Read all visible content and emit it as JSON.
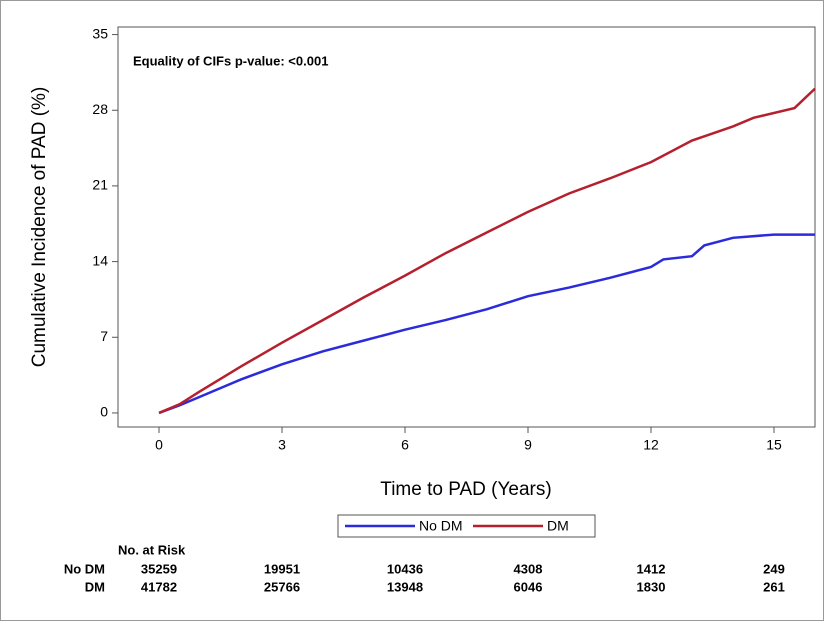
{
  "chart_data": {
    "type": "line",
    "annotation": "Equality of CIFs p-value: <0.001",
    "x_label": "Time to PAD (Years)",
    "y_label": "Cumulative Incidence of PAD (%)",
    "xlim": [
      -1,
      16
    ],
    "xticks": [
      0,
      3,
      6,
      9,
      12,
      15
    ],
    "ylim": [
      -1.3,
      35.7
    ],
    "yticks": [
      0,
      7,
      14,
      21,
      28,
      35
    ],
    "series": [
      {
        "name": "No DM",
        "color": "#2b2bdc",
        "x": [
          0,
          0.5,
          1,
          2,
          3,
          4,
          5,
          6,
          7,
          8,
          9,
          10,
          11,
          12,
          12.3,
          13,
          13.3,
          14,
          15,
          16
        ],
        "values": [
          0,
          0.7,
          1.5,
          3.1,
          4.5,
          5.7,
          6.7,
          7.7,
          8.6,
          9.6,
          10.8,
          11.6,
          12.5,
          13.5,
          14.2,
          14.5,
          15.5,
          16.2,
          16.5,
          16.5
        ]
      },
      {
        "name": "DM",
        "color": "#b5202e",
        "x": [
          0,
          0.5,
          1,
          2,
          3,
          4,
          5,
          6,
          7,
          8,
          9,
          10,
          11,
          12,
          13,
          14,
          14.5,
          15.5,
          16
        ],
        "values": [
          0,
          0.8,
          2,
          4.3,
          6.5,
          8.6,
          10.7,
          12.7,
          14.8,
          16.7,
          18.6,
          20.3,
          21.7,
          23.2,
          25.2,
          26.5,
          27.3,
          28.2,
          30
        ]
      }
    ],
    "risk_table": {
      "title": "No. at Risk",
      "rows": [
        {
          "name": "No DM",
          "values": [
            35259,
            19951,
            10436,
            4308,
            1412,
            249
          ]
        },
        {
          "name": "DM",
          "values": [
            41782,
            25766,
            13948,
            6046,
            1830,
            261
          ]
        }
      ]
    }
  }
}
